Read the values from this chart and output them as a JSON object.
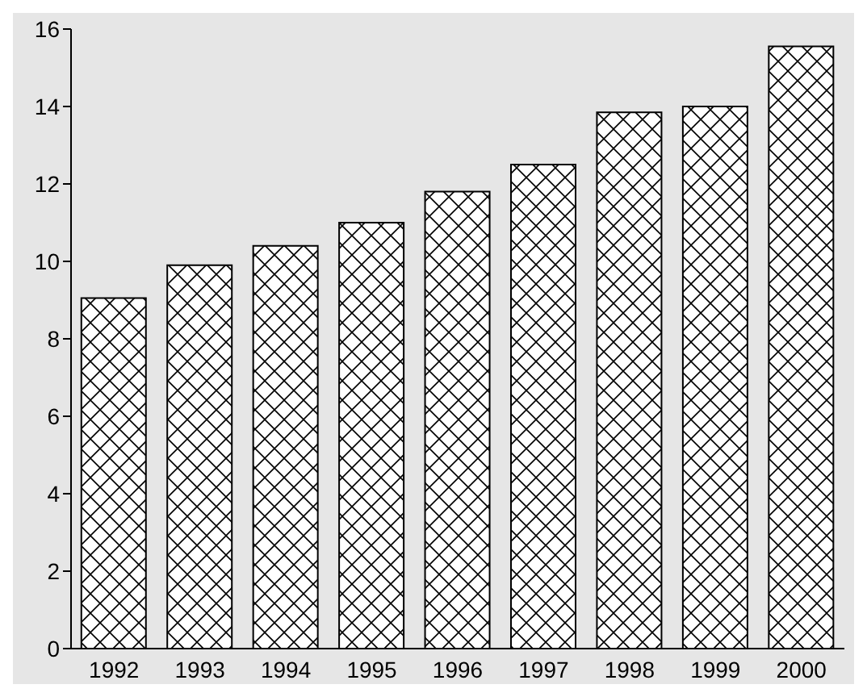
{
  "chart_data": {
    "type": "bar",
    "categories": [
      "1992",
      "1993",
      "1994",
      "1995",
      "1996",
      "1997",
      "1998",
      "1999",
      "2000"
    ],
    "values": [
      9.05,
      9.9,
      10.4,
      11.0,
      11.8,
      12.5,
      13.85,
      14.0,
      15.55
    ],
    "color": "#000000",
    "ylim": [
      0,
      16
    ],
    "yticks": [
      0,
      2,
      4,
      6,
      8,
      10,
      12,
      14,
      16
    ],
    "grid": false,
    "legend": false
  }
}
